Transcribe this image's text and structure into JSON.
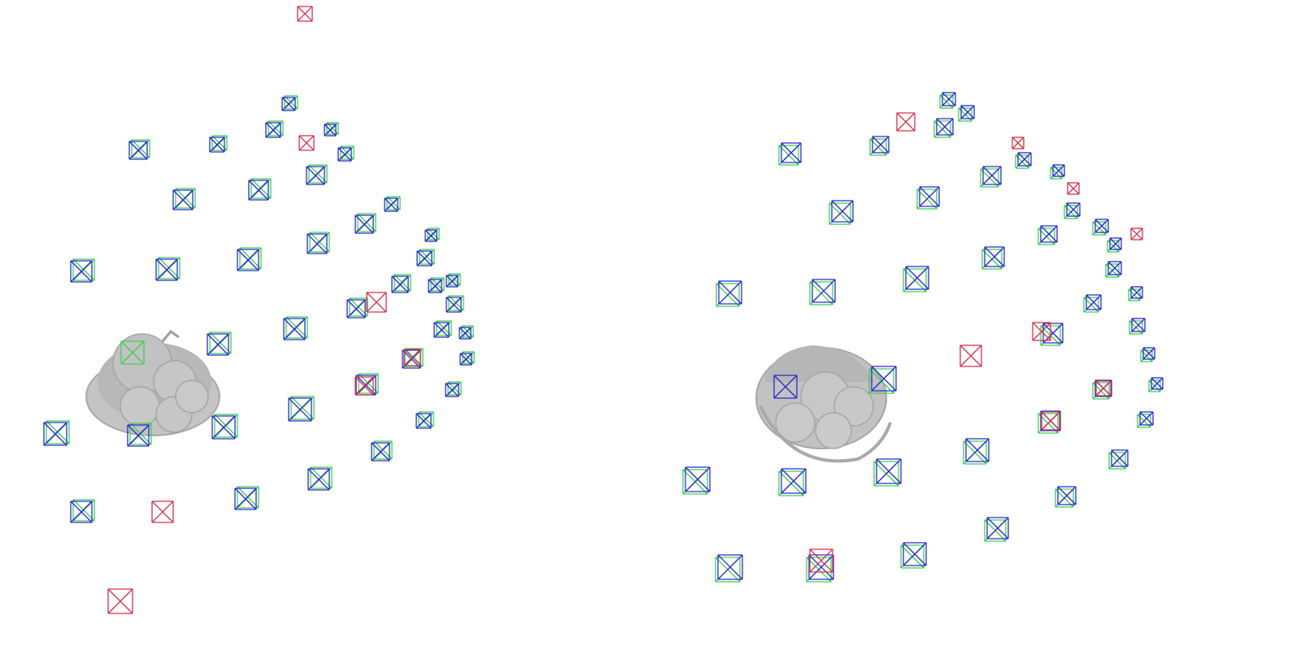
{
  "scene": {
    "colors": {
      "background": "#ffffff",
      "pose_green": "#3ecf55",
      "pose_blue": "#2a2ad0",
      "pose_red": "#d6314a",
      "object_gray": "#bdbdbd",
      "object_gray_dark": "#9a9a9a"
    },
    "object": "fruit-basket-mesh",
    "panels": [
      "left-view",
      "right-view"
    ]
  }
}
